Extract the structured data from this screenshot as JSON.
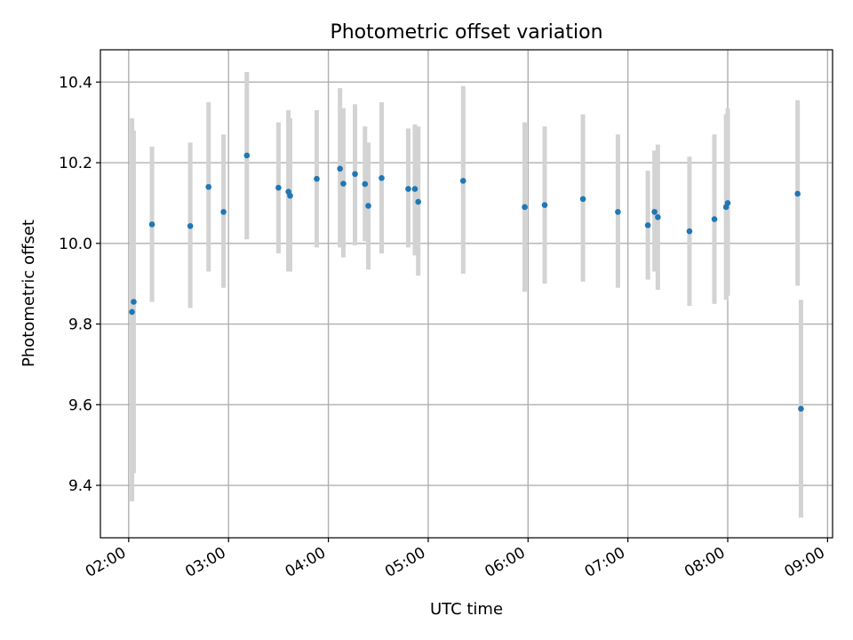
{
  "chart_data": {
    "type": "scatter",
    "title": "Photometric offset variation",
    "xlabel": "UTC time",
    "ylabel": "Photometric offset",
    "x_axis": {
      "kind": "time",
      "min": "01:43",
      "max": "09:03",
      "ticks": [
        "02:00",
        "03:00",
        "04:00",
        "05:00",
        "06:00",
        "07:00",
        "08:00",
        "09:00"
      ]
    },
    "y_axis": {
      "min": 9.27,
      "max": 10.48,
      "ticks": [
        "9.4",
        "9.6",
        "9.8",
        "10.0",
        "10.2",
        "10.4"
      ]
    },
    "grid": true,
    "colors": {
      "points": "#1f77b4",
      "errorbars": "#d3d3d3",
      "grid": "#b0b0b0"
    },
    "points": [
      {
        "x": "02:02",
        "y": 9.83,
        "lo": 9.36,
        "hi": 10.31
      },
      {
        "x": "02:03",
        "y": 9.855,
        "lo": 9.43,
        "hi": 10.28
      },
      {
        "x": "02:14",
        "y": 10.047,
        "lo": 9.855,
        "hi": 10.24
      },
      {
        "x": "02:37",
        "y": 10.043,
        "lo": 9.84,
        "hi": 10.25
      },
      {
        "x": "02:48",
        "y": 10.14,
        "lo": 9.93,
        "hi": 10.35
      },
      {
        "x": "02:57",
        "y": 10.078,
        "lo": 9.89,
        "hi": 10.27
      },
      {
        "x": "03:11",
        "y": 10.218,
        "lo": 10.01,
        "hi": 10.425
      },
      {
        "x": "03:30",
        "y": 10.138,
        "lo": 9.975,
        "hi": 10.3
      },
      {
        "x": "03:36",
        "y": 10.128,
        "lo": 9.93,
        "hi": 10.33
      },
      {
        "x": "03:37",
        "y": 10.118,
        "lo": 9.93,
        "hi": 10.31
      },
      {
        "x": "03:53",
        "y": 10.16,
        "lo": 9.99,
        "hi": 10.33
      },
      {
        "x": "04:07",
        "y": 10.185,
        "lo": 9.99,
        "hi": 10.385
      },
      {
        "x": "04:09",
        "y": 10.148,
        "lo": 9.965,
        "hi": 10.335
      },
      {
        "x": "04:16",
        "y": 10.172,
        "lo": 9.995,
        "hi": 10.345
      },
      {
        "x": "04:22",
        "y": 10.147,
        "lo": 10.005,
        "hi": 10.29
      },
      {
        "x": "04:24",
        "y": 10.093,
        "lo": 9.935,
        "hi": 10.25
      },
      {
        "x": "04:32",
        "y": 10.162,
        "lo": 9.975,
        "hi": 10.35
      },
      {
        "x": "04:48",
        "y": 10.135,
        "lo": 9.99,
        "hi": 10.285
      },
      {
        "x": "04:52",
        "y": 10.135,
        "lo": 9.97,
        "hi": 10.295
      },
      {
        "x": "04:54",
        "y": 10.103,
        "lo": 9.92,
        "hi": 10.29
      },
      {
        "x": "05:21",
        "y": 10.155,
        "lo": 9.925,
        "hi": 10.39
      },
      {
        "x": "05:58",
        "y": 10.09,
        "lo": 9.88,
        "hi": 10.3
      },
      {
        "x": "06:10",
        "y": 10.095,
        "lo": 9.9,
        "hi": 10.29
      },
      {
        "x": "06:33",
        "y": 10.11,
        "lo": 9.905,
        "hi": 10.32
      },
      {
        "x": "06:54",
        "y": 10.078,
        "lo": 9.89,
        "hi": 10.27
      },
      {
        "x": "07:12",
        "y": 10.045,
        "lo": 9.91,
        "hi": 10.18
      },
      {
        "x": "07:16",
        "y": 10.078,
        "lo": 9.93,
        "hi": 10.23
      },
      {
        "x": "07:18",
        "y": 10.065,
        "lo": 9.885,
        "hi": 10.245
      },
      {
        "x": "07:37",
        "y": 10.03,
        "lo": 9.845,
        "hi": 10.215
      },
      {
        "x": "07:52",
        "y": 10.06,
        "lo": 9.85,
        "hi": 10.27
      },
      {
        "x": "07:59",
        "y": 10.09,
        "lo": 9.86,
        "hi": 10.32
      },
      {
        "x": "08:00",
        "y": 10.1,
        "lo": 9.87,
        "hi": 10.335
      },
      {
        "x": "08:42",
        "y": 10.123,
        "lo": 9.895,
        "hi": 10.355
      },
      {
        "x": "08:44",
        "y": 9.59,
        "lo": 9.32,
        "hi": 9.86
      }
    ]
  }
}
